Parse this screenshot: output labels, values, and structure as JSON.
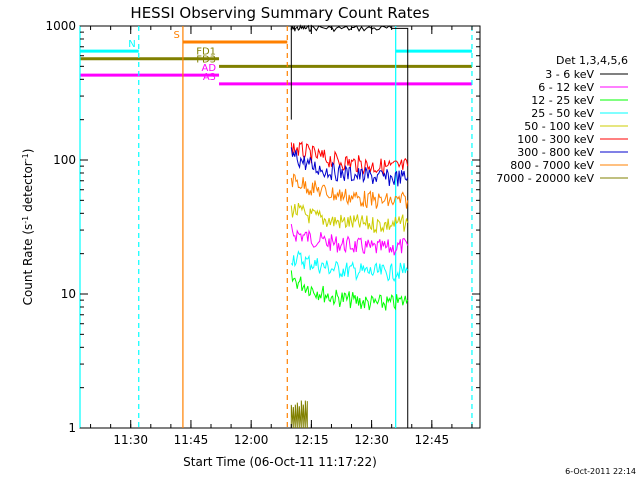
{
  "chart_data": {
    "type": "line",
    "title": "HESSI Observing Summary Count Rates",
    "xlabel": "Start Time (06-Oct-11 11:17:22)",
    "ylabel_main": "Count Rate (s",
    "ylabel_sup1": "-1",
    "ylabel_mid": " detector",
    "ylabel_sup2": "-1",
    "ylabel_end": ")",
    "y_scale": "log",
    "ylim": [
      1,
      1000
    ],
    "xlim": [
      "11:17:22",
      "12:57:00"
    ],
    "x_ticks": [
      "11:30",
      "11:45",
      "12:00",
      "12:15",
      "12:30",
      "12:45"
    ],
    "y_ticks": [
      "1",
      "10",
      "100",
      "1000"
    ],
    "legend": {
      "title": "Det 1,3,4,5,6",
      "placement": "right",
      "entries": [
        {
          "label": "3 - 6 keV",
          "color": "#000000"
        },
        {
          "label": "6 - 12 keV",
          "color": "#ff00ff"
        },
        {
          "label": "12 - 25 keV",
          "color": "#00ff00"
        },
        {
          "label": "25 - 50 keV",
          "color": "#00ffff"
        },
        {
          "label": "50 - 100 keV",
          "color": "#cccc00"
        },
        {
          "label": "100 - 300 keV",
          "color": "#ff0000"
        },
        {
          "label": "300 - 800 keV",
          "color": "#0000cc"
        },
        {
          "label": "800 - 7000 keV",
          "color": "#ff8000"
        },
        {
          "label": "7000 - 20000 keV",
          "color": "#808000"
        }
      ]
    },
    "series": [
      {
        "name": "3 - 6 keV",
        "color": "#000000",
        "segments": [
          {
            "x": [
              "12:10",
              "12:10",
              "12:11",
              "12:13",
              "12:15",
              "12:20",
              "12:25",
              "12:30",
              "12:35",
              "12:39",
              "12:39"
            ],
            "y": [
              200,
              850,
              950,
              960,
              960,
              970,
              960,
              960,
              960,
              960,
              1
            ]
          }
        ]
      },
      {
        "name": "6 - 12 keV",
        "color": "#ff00ff",
        "segments": [
          {
            "x": [
              "12:10",
              "12:15",
              "12:20",
              "12:25",
              "12:30",
              "12:35",
              "12:39"
            ],
            "y": [
              29,
              26,
              24,
              23,
              22,
              22,
              23
            ]
          }
        ]
      },
      {
        "name": "12 - 25 keV",
        "color": "#00ff00",
        "segments": [
          {
            "x": [
              "12:10",
              "12:15",
              "12:20",
              "12:25",
              "12:30",
              "12:35",
              "12:39"
            ],
            "y": [
              13,
              11,
              9.5,
              9,
              8.5,
              8.5,
              9
            ]
          }
        ]
      },
      {
        "name": "25 - 50 keV",
        "color": "#00ffff",
        "segments": [
          {
            "x": [
              "12:10",
              "12:15",
              "12:20",
              "12:25",
              "12:30",
              "12:35",
              "12:39"
            ],
            "y": [
              19,
              17,
              15.5,
              15,
              14.5,
              14.5,
              15
            ]
          }
        ]
      },
      {
        "name": "50 - 100 keV",
        "color": "#cccc00",
        "segments": [
          {
            "x": [
              "12:10",
              "12:15",
              "12:20",
              "12:25",
              "12:30",
              "12:35",
              "12:39"
            ],
            "y": [
              43,
              38,
              35,
              34,
              33,
              33,
              34
            ]
          }
        ]
      },
      {
        "name": "100 - 300 keV",
        "color": "#ff0000",
        "segments": [
          {
            "x": [
              "12:10",
              "12:15",
              "12:20",
              "12:25",
              "12:30",
              "12:35",
              "12:39"
            ],
            "y": [
              125,
              110,
              100,
              95,
              90,
              88,
              90
            ]
          }
        ]
      },
      {
        "name": "300 - 800 keV",
        "color": "#0000cc",
        "segments": [
          {
            "x": [
              "12:10",
              "12:15",
              "12:20",
              "12:25",
              "12:30",
              "12:35",
              "12:39"
            ],
            "y": [
              110,
              90,
              82,
              78,
              75,
              73,
              74
            ]
          }
        ]
      },
      {
        "name": "800 - 7000 keV",
        "color": "#ff8000",
        "segments": [
          {
            "x": [
              "12:10",
              "12:15",
              "12:20",
              "12:25",
              "12:30",
              "12:35",
              "12:39"
            ],
            "y": [
              72,
              62,
              56,
              53,
              50,
              49,
              50
            ]
          }
        ]
      },
      {
        "name": "7000 - 20000 keV",
        "color": "#808000",
        "segments": [
          {
            "x": [
              "12:10",
              "12:14"
            ],
            "y": [
              1.4,
              1.4
            ]
          }
        ]
      }
    ],
    "flag_bars": [
      {
        "label": "N",
        "color": "#00ffff",
        "y": 650,
        "segments": [
          [
            "11:17:22",
            "11:32"
          ],
          [
            "12:36",
            "12:55"
          ]
        ]
      },
      {
        "label": "S",
        "color": "#ff8000",
        "y": 760,
        "segments": [
          [
            "11:43",
            "12:09"
          ]
        ]
      },
      {
        "label": "FD1",
        "color": "#808000",
        "y": 570,
        "segments": [
          [
            "11:17:22",
            "11:52"
          ]
        ]
      },
      {
        "label": "FD3",
        "color": "#808000",
        "y": 500,
        "segments": [
          [
            "11:52",
            "12:55"
          ]
        ]
      },
      {
        "label": "AD",
        "color": "#ff00ff",
        "y": 430,
        "segments": [
          [
            "11:17:22",
            "11:52"
          ]
        ]
      },
      {
        "label": "A3",
        "color": "#ff00ff",
        "y": 370,
        "segments": [
          [
            "11:52",
            "12:55"
          ]
        ]
      }
    ],
    "vertical_markers": [
      {
        "x": "11:17:22",
        "color": "#00ffff",
        "style": "solid"
      },
      {
        "x": "11:32",
        "color": "#00ffff",
        "style": "dashed"
      },
      {
        "x": "11:43",
        "color": "#ff8000",
        "style": "solid"
      },
      {
        "x": "12:09",
        "color": "#ff8000",
        "style": "dashed"
      },
      {
        "x": "12:36",
        "color": "#00ffff",
        "style": "solid"
      },
      {
        "x": "12:55",
        "color": "#00ffff",
        "style": "dashed"
      }
    ],
    "grid": false
  },
  "footer_timestamp": "6-Oct-2011 22:14"
}
